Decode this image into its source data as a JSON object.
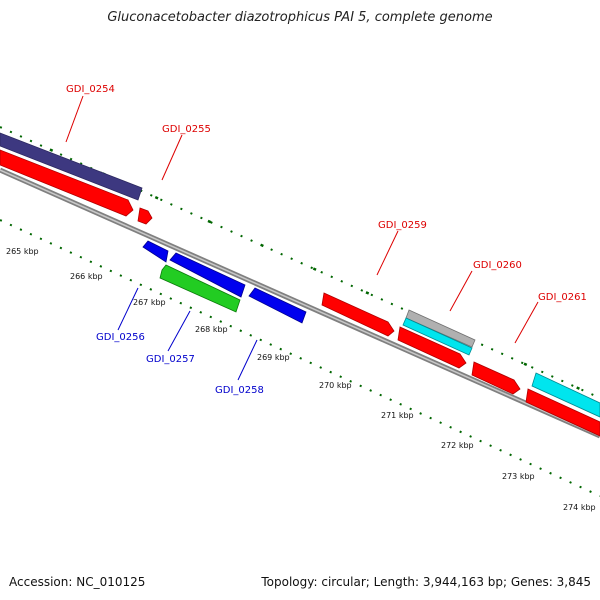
{
  "title": "Gluconacetobacter diazotrophicus PAI 5, complete genome",
  "footer": {
    "accession": "Accession: NC_010125",
    "topology": "Topology: circular; Length: 3,944,163 bp; Genes: 3,845"
  },
  "colors": {
    "forward_gene": "#ff0000",
    "reverse_gene": "#0000ee",
    "rna_gene": "#22cc22",
    "gc_track": "#3d3880",
    "cyan_track": "#00e5ee",
    "gray_track": "#b0b0b0",
    "backbone": "#808080",
    "forward_label": "#dd0000",
    "reverse_label": "#0000cc",
    "tick": "#006600"
  },
  "ticks": [
    "265 kbp",
    "266 kbp",
    "267 kbp",
    "268 kbp",
    "269 kbp",
    "270 kbp",
    "271 kbp",
    "272 kbp",
    "273 kbp",
    "274 kbp"
  ],
  "genes": {
    "forward": [
      "GDI_0254",
      "GDI_0255",
      "GDI_0259",
      "GDI_0260",
      "GDI_0261"
    ],
    "reverse": [
      "GDI_0256",
      "GDI_0257",
      "GDI_0258"
    ]
  }
}
